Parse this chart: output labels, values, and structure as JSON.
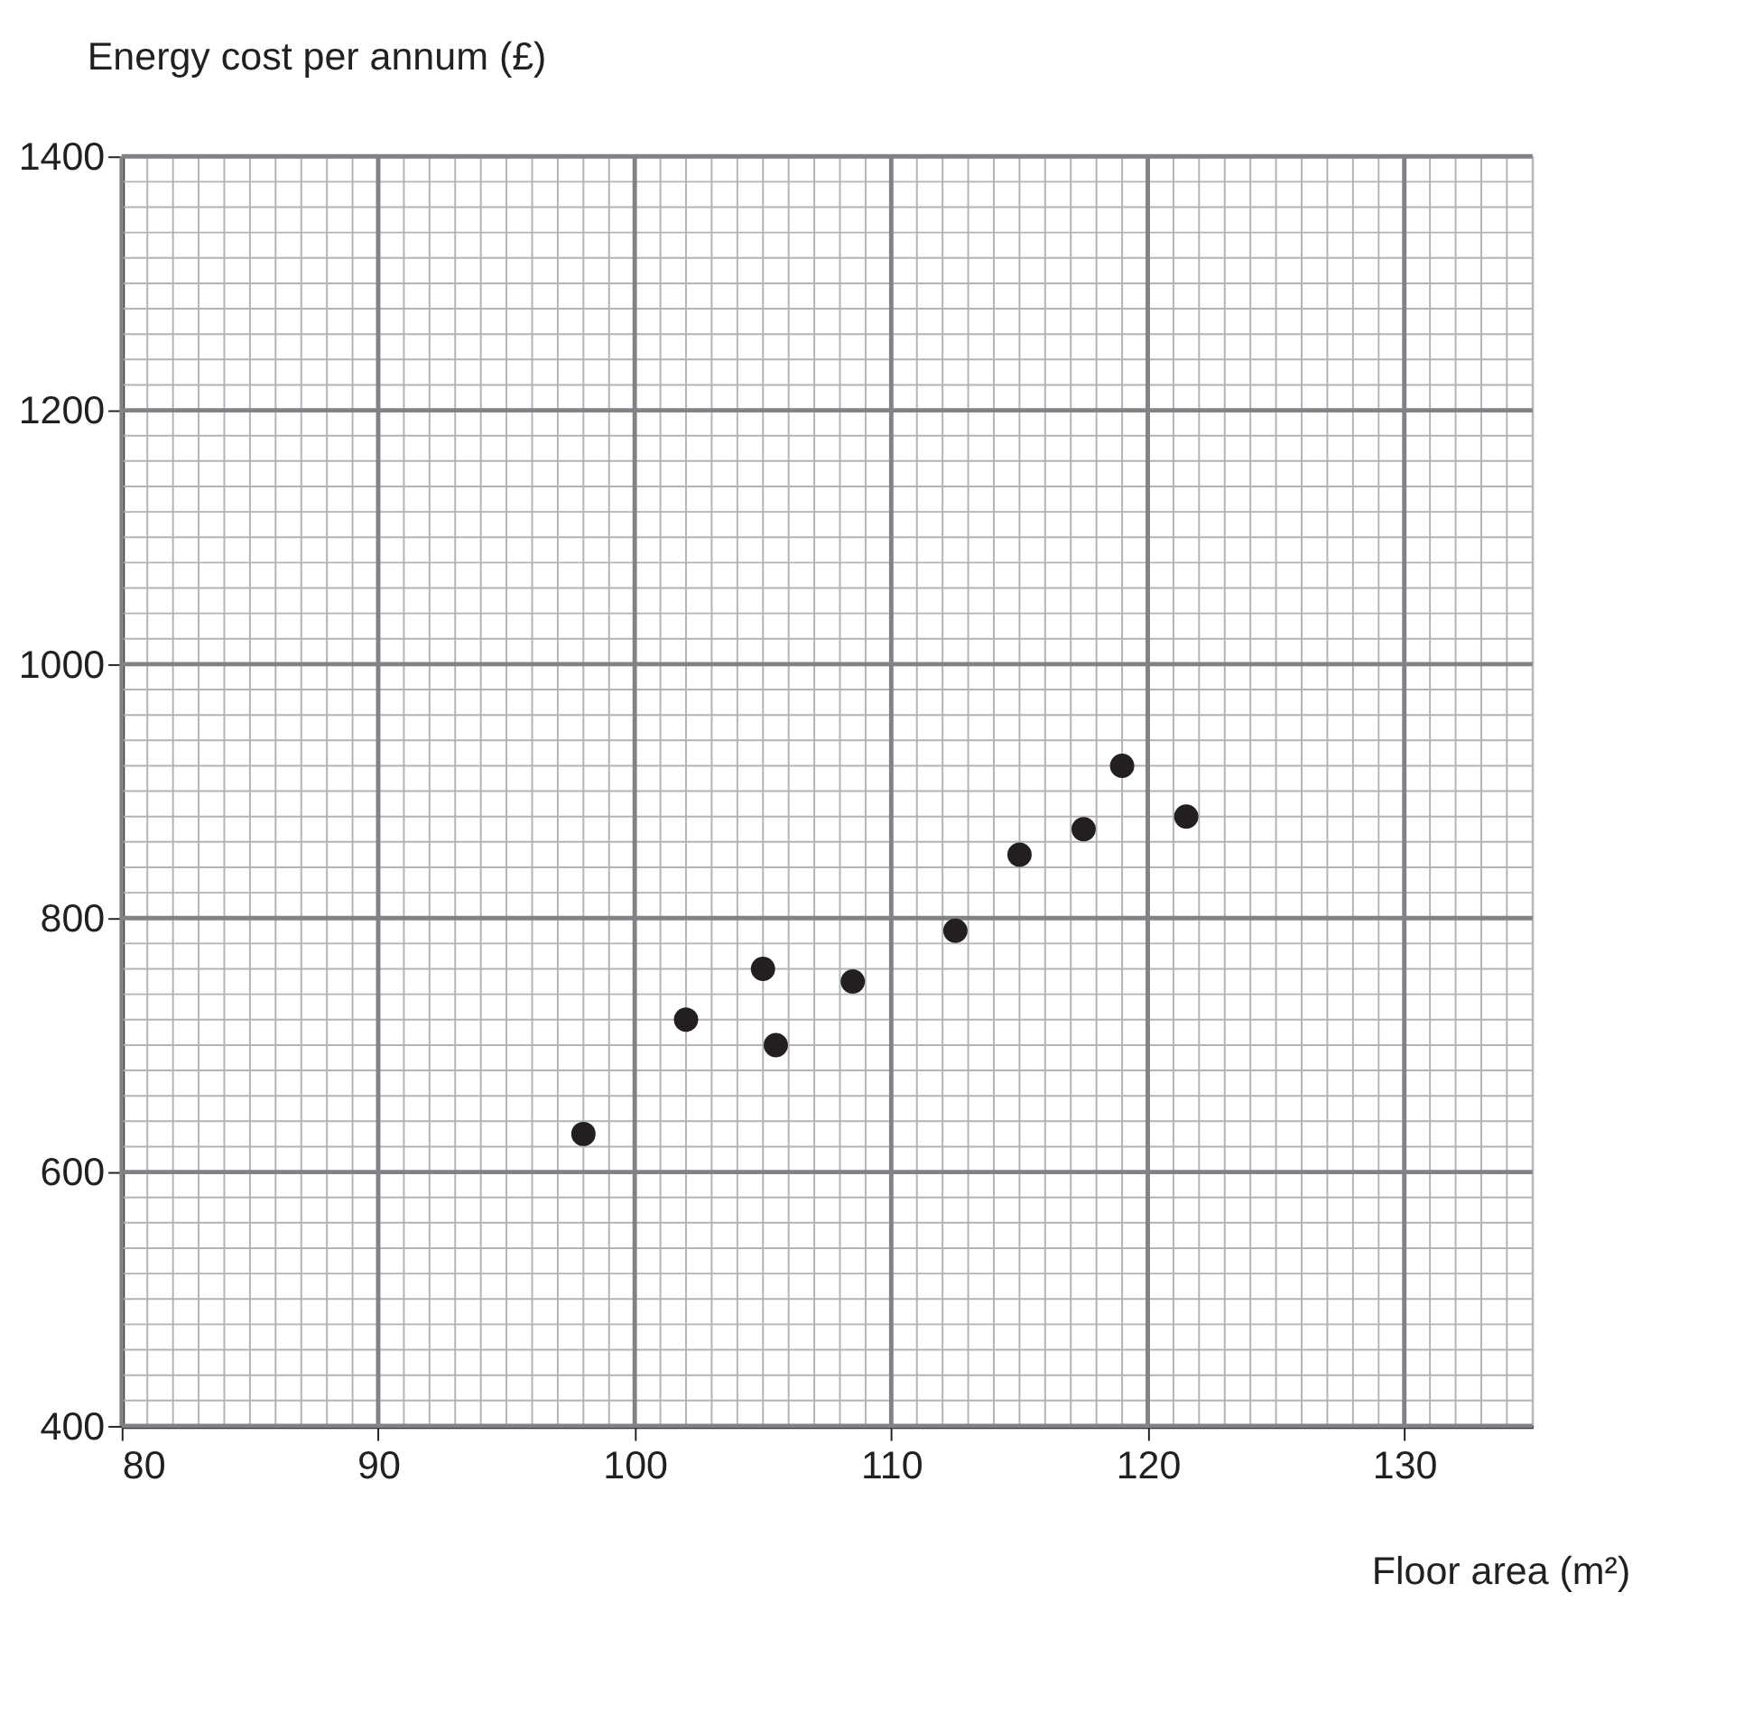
{
  "chart_data": {
    "type": "scatter",
    "xlabel": "Floor area (m²)",
    "ylabel": "Energy cost per annum (£)",
    "x": [
      98,
      102,
      105,
      105.5,
      108.5,
      112.5,
      115,
      117.5,
      119,
      121.5
    ],
    "values": [
      630,
      720,
      760,
      700,
      750,
      790,
      850,
      870,
      920,
      880
    ],
    "color": "#231f20",
    "marker": "circle",
    "xlim": [
      80,
      135
    ],
    "xticks": [
      80,
      90,
      100,
      110,
      120,
      130
    ],
    "ylim": [
      400,
      1400
    ],
    "yticks": [
      400,
      600,
      800,
      1000,
      1200,
      1400
    ],
    "grid": true
  }
}
